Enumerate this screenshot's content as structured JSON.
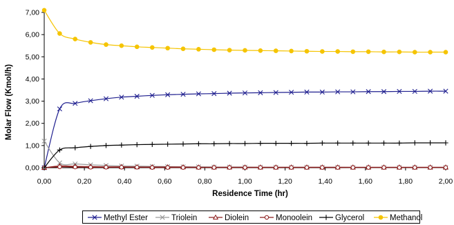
{
  "chart_data": {
    "type": "line",
    "xlabel": "Residence Time (hr)",
    "ylabel": "Molar Flow (Kmol/h)",
    "xlim": [
      0,
      2
    ],
    "ylim": [
      0,
      7
    ],
    "x_ticks": [
      "0,00",
      "0,20",
      "0,40",
      "0,60",
      "0,80",
      "1,00",
      "1,20",
      "1,40",
      "1,60",
      "1,80",
      "2,00"
    ],
    "y_ticks": [
      "0,00",
      "1,00",
      "2,00",
      "3,00",
      "4,00",
      "5,00",
      "6,00",
      "7,00"
    ],
    "grid": false,
    "legend_position": "bottom",
    "x": [
      0.0,
      0.077,
      0.154,
      0.231,
      0.308,
      0.385,
      0.462,
      0.538,
      0.615,
      0.692,
      0.769,
      0.846,
      0.923,
      1.0,
      1.077,
      1.154,
      1.231,
      1.308,
      1.385,
      1.462,
      1.538,
      1.615,
      1.692,
      1.769,
      1.846,
      1.923,
      2.0
    ],
    "series": [
      {
        "name": "Methyl Ester",
        "color": "#1f1f8f",
        "marker": "x",
        "values": [
          0.0,
          2.65,
          2.9,
          3.02,
          3.11,
          3.18,
          3.22,
          3.26,
          3.29,
          3.31,
          3.33,
          3.34,
          3.36,
          3.37,
          3.38,
          3.39,
          3.4,
          3.41,
          3.41,
          3.42,
          3.42,
          3.43,
          3.43,
          3.44,
          3.44,
          3.45,
          3.45
        ]
      },
      {
        "name": "Triolein",
        "color": "#9a9a9a",
        "marker": "x",
        "values": [
          1.2,
          0.22,
          0.17,
          0.13,
          0.1,
          0.08,
          0.07,
          0.06,
          0.05,
          0.04,
          0.04,
          0.03,
          0.03,
          0.03,
          0.02,
          0.02,
          0.02,
          0.02,
          0.02,
          0.02,
          0.01,
          0.01,
          0.01,
          0.01,
          0.01,
          0.01,
          0.01
        ]
      },
      {
        "name": "Diolein",
        "color": "#8b1a1a",
        "marker": "triangle",
        "values": [
          0.0,
          0.08,
          0.06,
          0.05,
          0.04,
          0.04,
          0.03,
          0.03,
          0.03,
          0.03,
          0.02,
          0.02,
          0.02,
          0.02,
          0.02,
          0.02,
          0.02,
          0.02,
          0.02,
          0.02,
          0.02,
          0.02,
          0.02,
          0.02,
          0.02,
          0.02,
          0.02
        ]
      },
      {
        "name": "Monoolein",
        "color": "#8b1a1a",
        "marker": "circle",
        "values": [
          0.0,
          0.04,
          0.03,
          0.02,
          0.02,
          0.02,
          0.02,
          0.01,
          0.01,
          0.01,
          0.01,
          0.01,
          0.01,
          0.01,
          0.01,
          0.01,
          0.01,
          0.01,
          0.01,
          0.01,
          0.01,
          0.01,
          0.01,
          0.01,
          0.01,
          0.01,
          0.01
        ]
      },
      {
        "name": "Glycerol",
        "color": "#000000",
        "marker": "plus",
        "values": [
          0.0,
          0.8,
          0.9,
          0.96,
          1.0,
          1.02,
          1.04,
          1.05,
          1.06,
          1.07,
          1.08,
          1.08,
          1.09,
          1.09,
          1.1,
          1.1,
          1.1,
          1.1,
          1.11,
          1.11,
          1.11,
          1.11,
          1.11,
          1.11,
          1.12,
          1.12,
          1.12
        ]
      },
      {
        "name": "Methanol",
        "color": "#f5c400",
        "marker": "circle-filled",
        "values": [
          7.1,
          6.05,
          5.8,
          5.65,
          5.55,
          5.5,
          5.45,
          5.42,
          5.39,
          5.36,
          5.34,
          5.32,
          5.3,
          5.29,
          5.28,
          5.27,
          5.26,
          5.25,
          5.24,
          5.24,
          5.23,
          5.23,
          5.22,
          5.22,
          5.21,
          5.21,
          5.21
        ]
      }
    ]
  }
}
